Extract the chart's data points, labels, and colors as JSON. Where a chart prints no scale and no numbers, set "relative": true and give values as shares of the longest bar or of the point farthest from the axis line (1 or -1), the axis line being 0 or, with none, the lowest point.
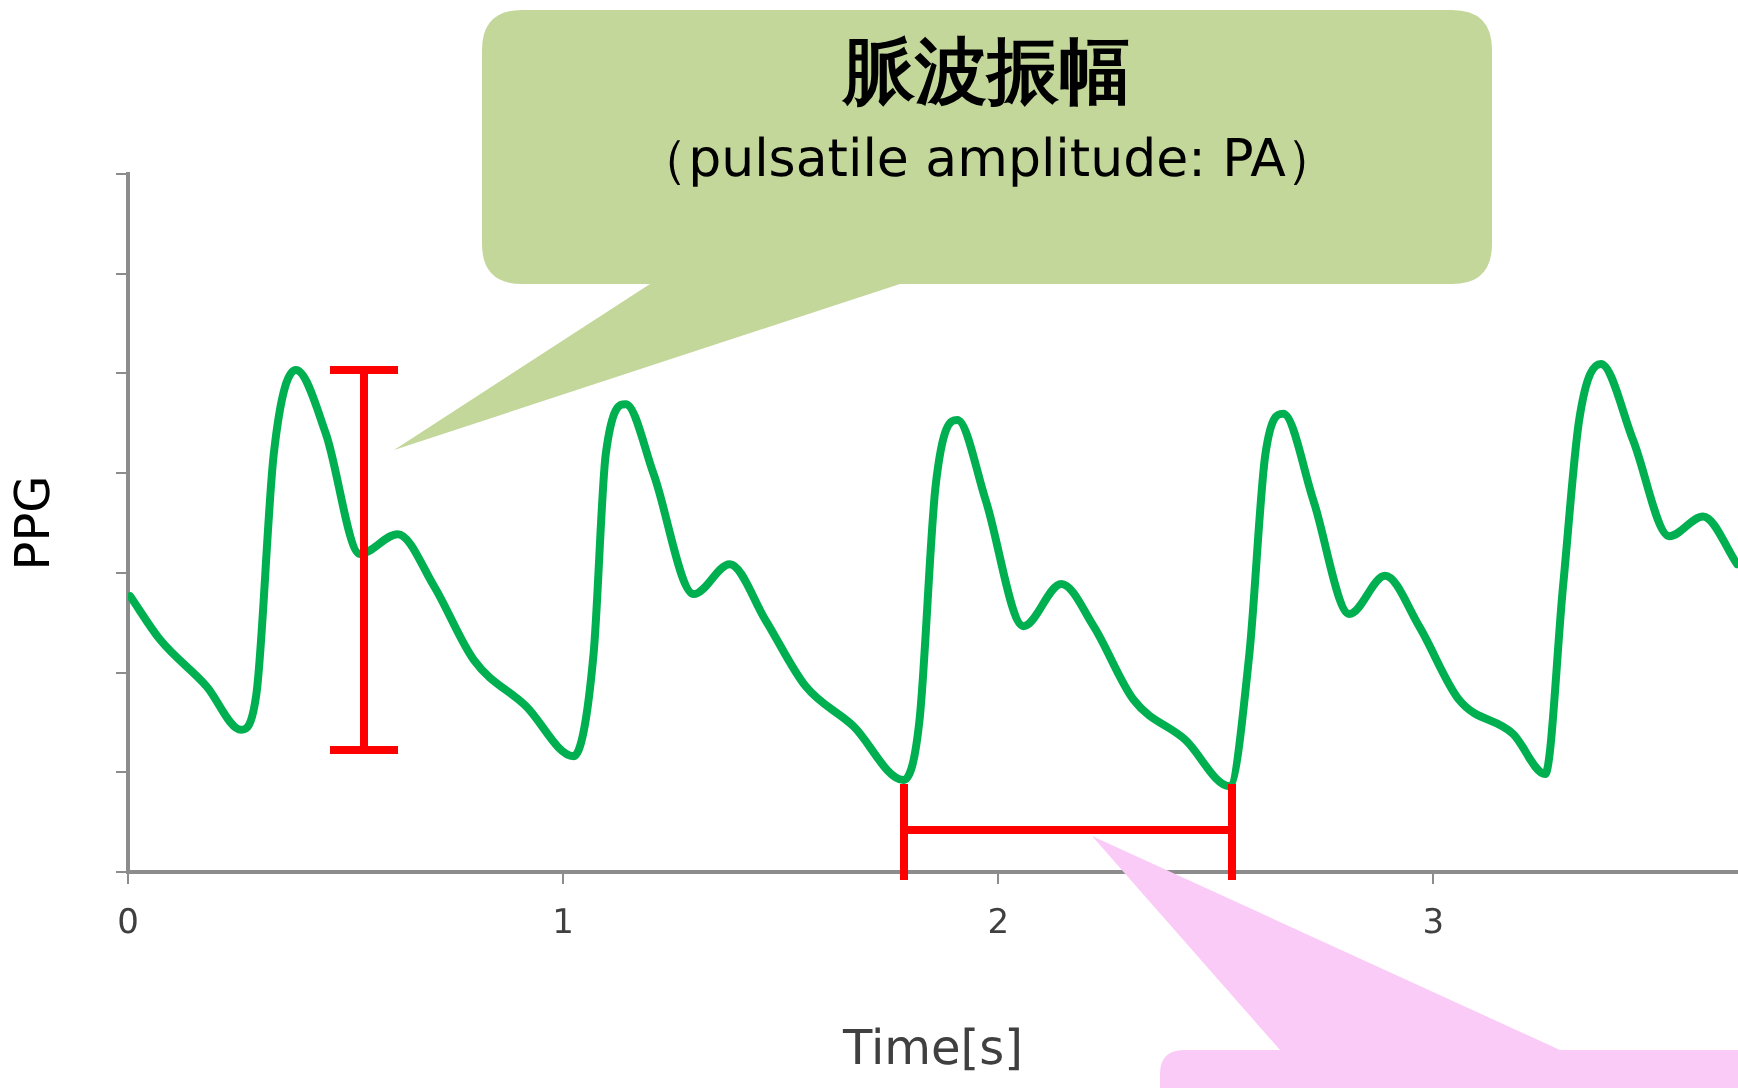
{
  "chart_data": {
    "type": "line",
    "xlabel": "Time[s]",
    "ylabel": "PPG",
    "relative": true,
    "xlim": [
      0,
      3.7
    ],
    "xticks": [
      0,
      1,
      2,
      3
    ],
    "marker": "none",
    "grid": false,
    "annotations": [
      "脈波振幅",
      "（pulsatile amplitude: PA）"
    ],
    "series": [
      {
        "color": "#00b050",
        "x": [
          0.005,
          0.074,
          0.18,
          0.26,
          0.295,
          0.335,
          0.386,
          0.455,
          0.533,
          0.62,
          0.703,
          0.795,
          0.914,
          1.024,
          1.07,
          1.098,
          1.144,
          1.208,
          1.3,
          1.383,
          1.465,
          1.557,
          1.667,
          1.782,
          1.819,
          1.856,
          1.906,
          1.971,
          2.058,
          2.145,
          2.219,
          2.311,
          2.43,
          2.531,
          2.577,
          2.614,
          2.655,
          2.724,
          2.807,
          2.889,
          2.967,
          3.059,
          3.183,
          3.257,
          3.298,
          3.335,
          3.385,
          3.459,
          3.542,
          3.62,
          3.698
        ],
        "values": [
          0.543,
          0.457,
          0.366,
          0.28,
          0.35,
          0.823,
          0.988,
          0.862,
          0.626,
          0.665,
          0.563,
          0.417,
          0.327,
          0.228,
          0.43,
          0.823,
          0.921,
          0.783,
          0.547,
          0.606,
          0.496,
          0.366,
          0.287,
          0.181,
          0.299,
          0.76,
          0.89,
          0.732,
          0.484,
          0.567,
          0.484,
          0.339,
          0.26,
          0.169,
          0.429,
          0.823,
          0.902,
          0.732,
          0.508,
          0.583,
          0.484,
          0.339,
          0.272,
          0.193,
          0.563,
          0.89,
          1.0,
          0.85,
          0.661,
          0.7,
          0.606
        ]
      }
    ]
  }
}
